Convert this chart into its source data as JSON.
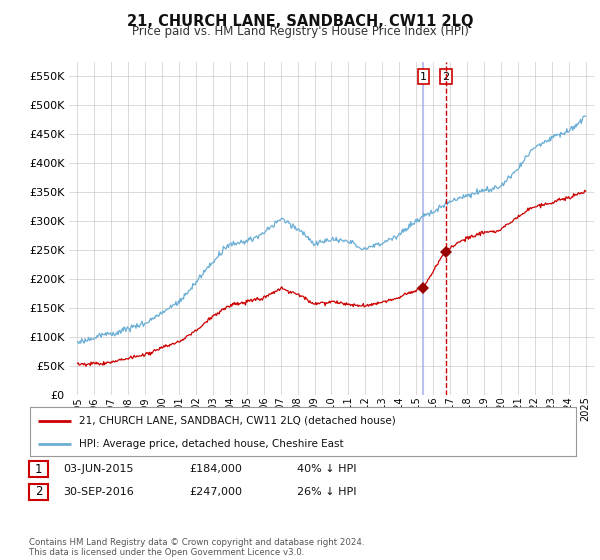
{
  "title": "21, CHURCH LANE, SANDBACH, CW11 2LQ",
  "subtitle": "Price paid vs. HM Land Registry's House Price Index (HPI)",
  "legend_line1": "21, CHURCH LANE, SANDBACH, CW11 2LQ (detached house)",
  "legend_line2": "HPI: Average price, detached house, Cheshire East",
  "transaction1_date": "03-JUN-2015",
  "transaction1_price": "£184,000",
  "transaction1_hpi": "40% ↓ HPI",
  "transaction1_year": 2015.42,
  "transaction1_value": 184000,
  "transaction2_date": "30-SEP-2016",
  "transaction2_price": "£247,000",
  "transaction2_hpi": "26% ↓ HPI",
  "transaction2_year": 2016.75,
  "transaction2_value": 247000,
  "footer": "Contains HM Land Registry data © Crown copyright and database right 2024.\nThis data is licensed under the Open Government Licence v3.0.",
  "hpi_color": "#6baed6",
  "property_color": "#cc0000",
  "marker_color": "#990000",
  "vline1_color": "#aaaacc",
  "vline2_color": "#cc0000",
  "grid_color": "#cccccc",
  "background_color": "#ffffff",
  "ylim": [
    0,
    575000
  ],
  "xlim_start": 1994.5,
  "xlim_end": 2025.5
}
